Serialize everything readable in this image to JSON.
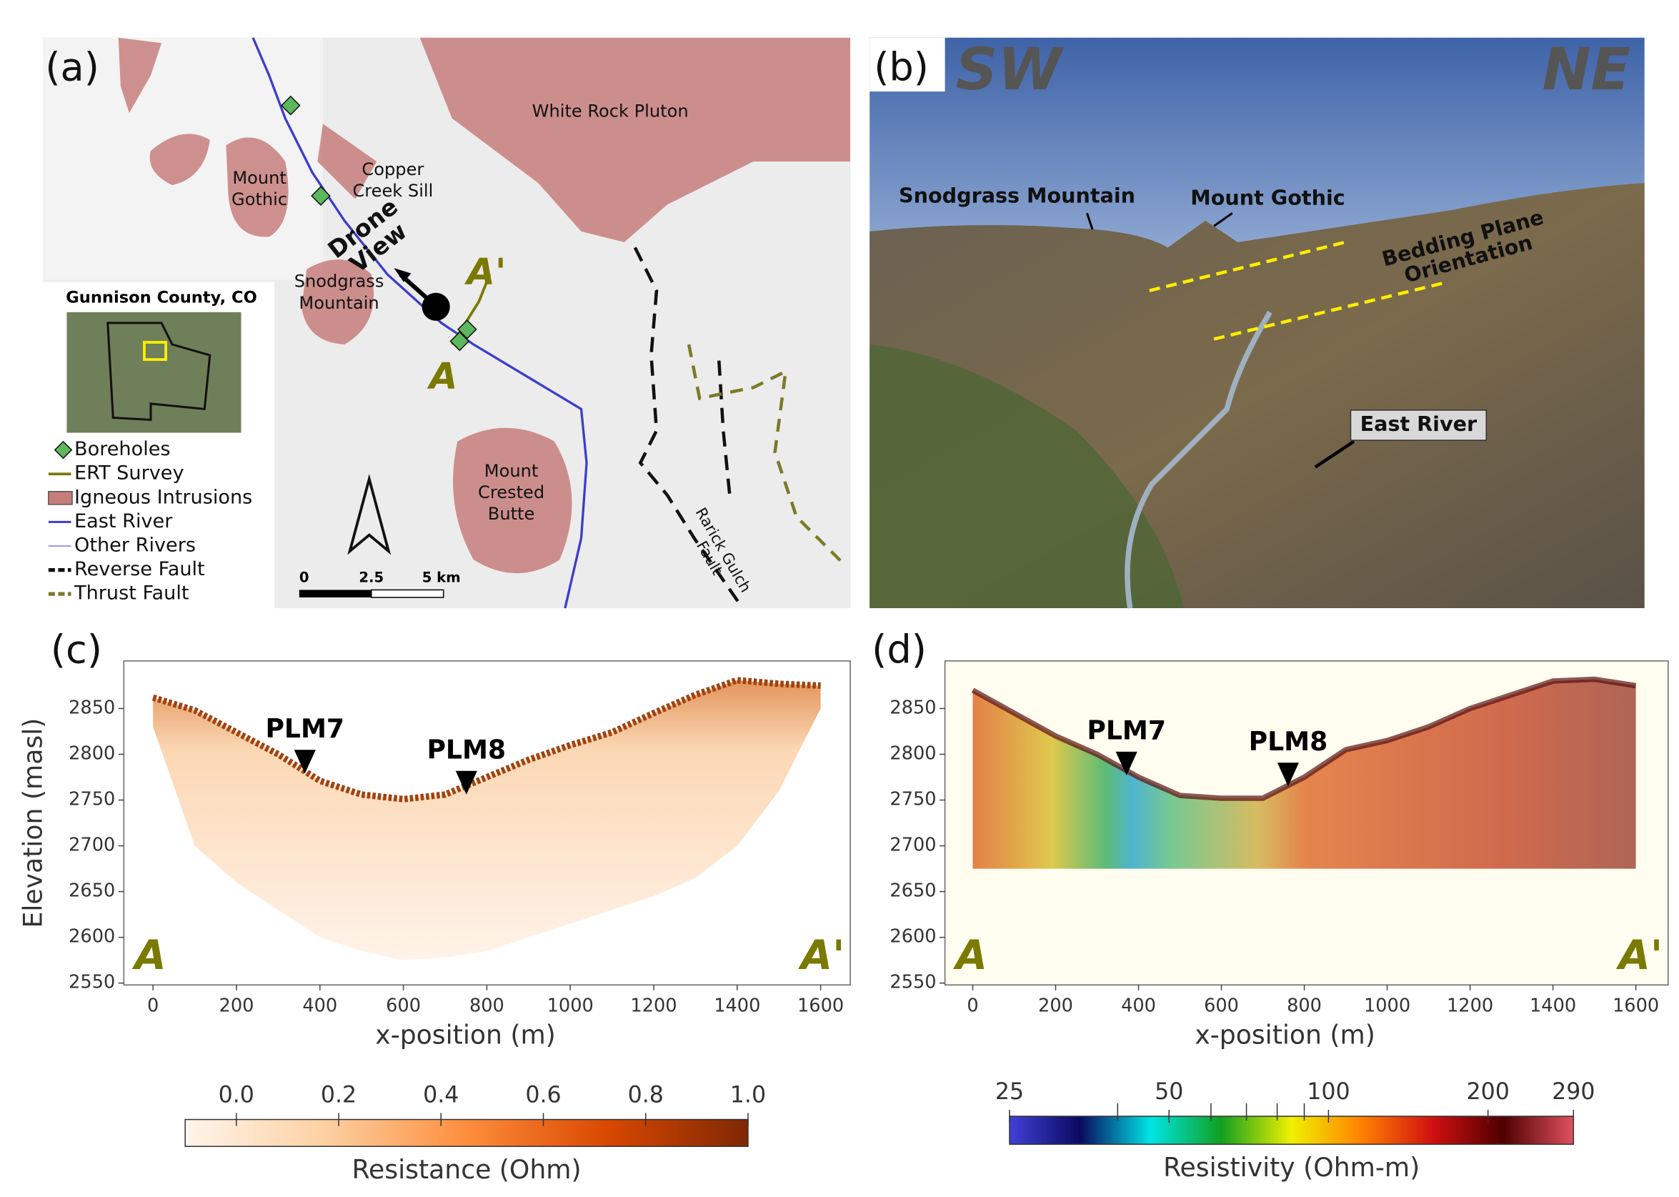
{
  "map": {
    "label": "(a)",
    "places": [
      {
        "lines": [
          "White Rock Pluton"
        ]
      },
      {
        "lines": [
          "Mount",
          "Gothic"
        ]
      },
      {
        "lines": [
          "Copper",
          "Creek Sill"
        ]
      },
      {
        "lines": [
          "Snodgrass",
          "Mountain"
        ]
      },
      {
        "lines": [
          "Mount",
          "Crested",
          "Butte"
        ]
      },
      {
        "lines": [
          "Drone",
          "View"
        ]
      },
      {
        "lines": [
          "A'"
        ]
      },
      {
        "lines": [
          "A"
        ]
      },
      {
        "lines": [
          "Rarick Gulch",
          "Fault"
        ]
      }
    ],
    "inset_title": "Gunnison County, CO",
    "legend": [
      "Boreholes",
      "ERT Survey",
      "Igneous Intrusions",
      "East River",
      "Other Rivers",
      "Reverse Fault",
      "Thrust Fault"
    ],
    "scale_labels": [
      "0",
      "2.5",
      "5 km"
    ]
  },
  "photo": {
    "label": "(b)",
    "left_direction": "SW",
    "right_direction": "NE",
    "labels": [
      {
        "lines": [
          "Snodgrass Mountain"
        ]
      },
      {
        "lines": [
          "Mount Gothic"
        ]
      },
      {
        "lines": [
          "Bedding Plane",
          "Orientation"
        ]
      },
      {
        "lines": [
          "East River"
        ]
      }
    ]
  },
  "chart_data": [
    {
      "type": "pseudosection",
      "label": "(c)",
      "xlabel": "x-position (m)",
      "ylabel": "Elevation (masl)",
      "xlim": [
        -70,
        1671
      ],
      "ylim": [
        2548,
        2902
      ],
      "xticks": [
        0,
        200,
        400,
        600,
        800,
        1000,
        1200,
        1400,
        1600
      ],
      "yticks": [
        2550,
        2600,
        2650,
        2700,
        2750,
        2800,
        2850
      ],
      "x": [
        0,
        100,
        200,
        300,
        400,
        500,
        600,
        700,
        800,
        900,
        1000,
        1100,
        1200,
        1300,
        1400,
        1500,
        1600
      ],
      "values": [
        2862,
        2848,
        2824,
        2800,
        2771,
        2756,
        2751,
        2756,
        2775,
        2794,
        2810,
        2824,
        2845,
        2865,
        2881,
        2877,
        2875
      ],
      "bottom": [
        2830,
        2700,
        2660,
        2630,
        2600,
        2585,
        2575,
        2578,
        2585,
        2600,
        2615,
        2630,
        2645,
        2665,
        2700,
        2760,
        2850
      ],
      "annotations": [
        {
          "text": "PLM7",
          "x": 364,
          "y": 2779
        },
        {
          "text": "PLM8",
          "x": 751,
          "y": 2756
        }
      ],
      "end_labels": [
        "A",
        "A'"
      ],
      "colorbar": {
        "label": "Resistance (Ohm)",
        "lim": [
          -0.1,
          1.0
        ],
        "ticks": [
          {
            "value": 0,
            "label": "0.0"
          },
          0.2,
          0.4,
          0.6,
          0.8,
          {
            "value": 1,
            "label": "1.0"
          }
        ],
        "colors": [
          "#fff5eb",
          "#fdd0a2",
          "#fd8d3c",
          "#d94801",
          "#7f2704"
        ]
      }
    },
    {
      "type": "model",
      "label": "(d)",
      "xlabel": "x-position (m)",
      "ylabel": "",
      "xlim": [
        -67,
        1678
      ],
      "ylim": [
        2548,
        2902
      ],
      "xticks": [
        0,
        200,
        400,
        600,
        800,
        1000,
        1200,
        1400,
        1600
      ],
      "yticks": [
        2550,
        2600,
        2650,
        2700,
        2750,
        2800,
        2850
      ],
      "x": [
        0,
        100,
        200,
        300,
        400,
        500,
        600,
        700,
        800,
        900,
        1000,
        1100,
        1200,
        1300,
        1400,
        1500,
        1600
      ],
      "values": [
        2870,
        2845,
        2820,
        2800,
        2775,
        2755,
        2752,
        2752,
        2775,
        2805,
        2815,
        2830,
        2850,
        2865,
        2880,
        2882,
        2875
      ],
      "model_bottom": 2675,
      "annotations": [
        {
          "text": "PLM7",
          "x": 371,
          "y": 2777
        },
        {
          "text": "PLM8",
          "x": 761,
          "y": 2765
        }
      ],
      "end_labels": [
        "A",
        "A'"
      ],
      "colorbar": {
        "label": "Resistivity (Ohm-m)",
        "log": true,
        "lim": [
          25,
          290
        ],
        "ticks": [
          25,
          50,
          100,
          200,
          290
        ],
        "minor_ticks": [
          40,
          60,
          70,
          80,
          90
        ],
        "colors": [
          "#4040d8",
          "#0a0a60",
          "#00e5e5",
          "#10a020",
          "#f0f000",
          "#ff8000",
          "#d01010",
          "#500000",
          "#e05060"
        ]
      }
    }
  ]
}
